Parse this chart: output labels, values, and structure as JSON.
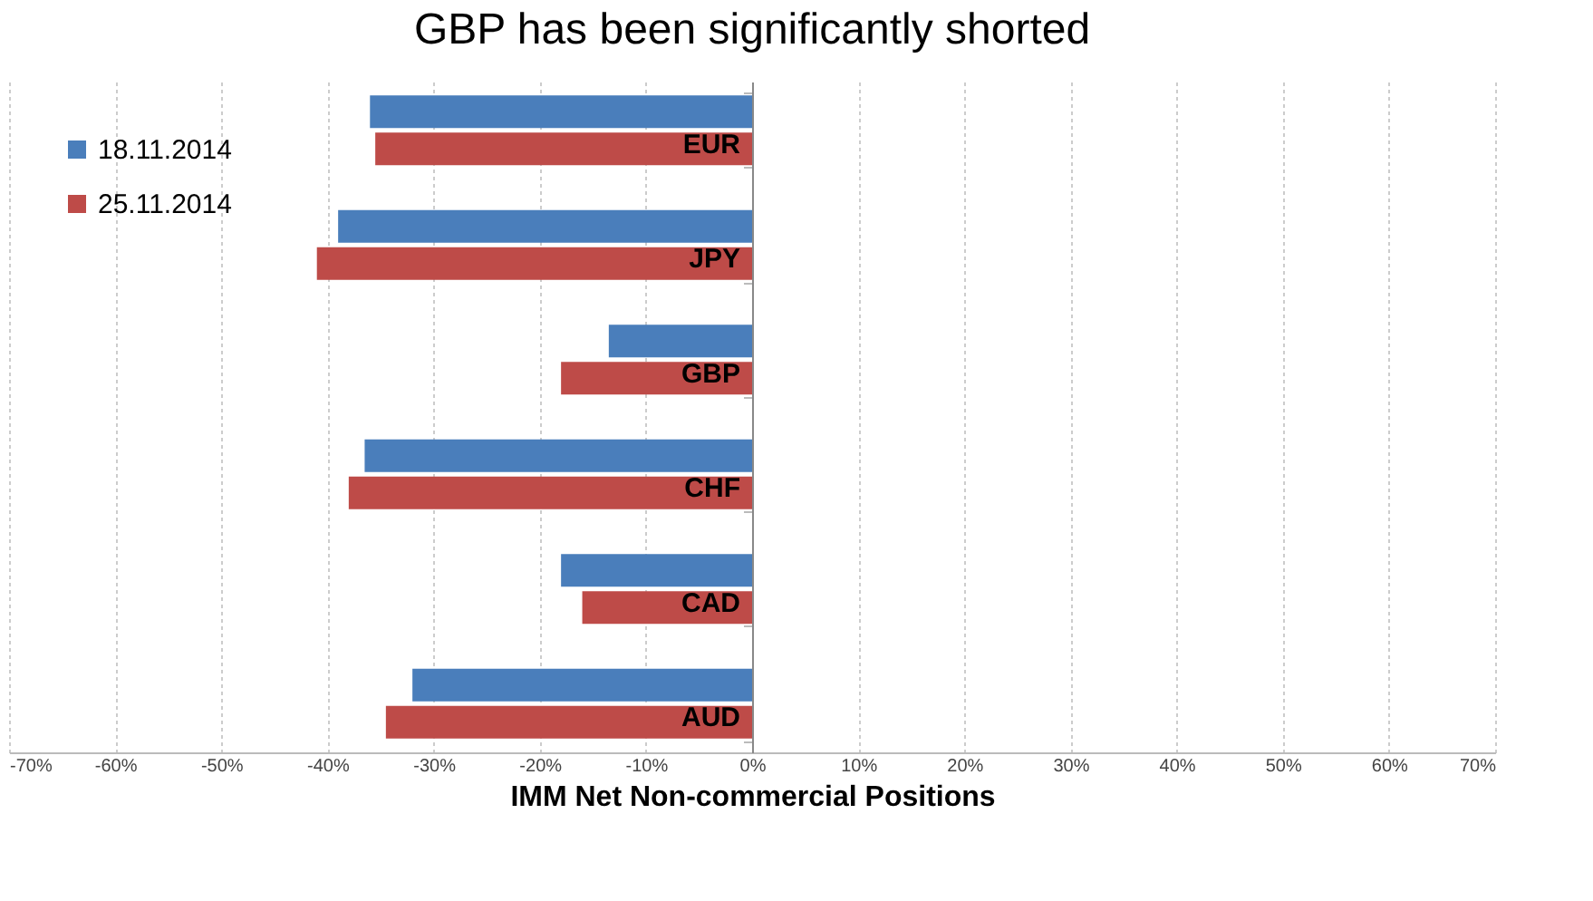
{
  "chart_data": {
    "type": "bar",
    "orientation": "horizontal",
    "title": "GBP has been significantly shorted",
    "xlabel": "IMM Net Non-commercial Positions",
    "categories": [
      "EUR",
      "JPY",
      "GBP",
      "CHF",
      "CAD",
      "AUD"
    ],
    "series": [
      {
        "name": "18.11.2014",
        "color": "#4a7ebb",
        "values": [
          -36,
          -39,
          -13.5,
          -36.5,
          -18,
          -32
        ]
      },
      {
        "name": "25.11.2014",
        "color": "#be4b48",
        "values": [
          -35.5,
          -41,
          -18,
          -38,
          -16,
          -34.5
        ]
      }
    ],
    "xlim": [
      -70,
      70
    ],
    "xticks": [
      {
        "value": -70,
        "label": "-70%"
      },
      {
        "value": -60,
        "label": "-60%"
      },
      {
        "value": -50,
        "label": "-50%"
      },
      {
        "value": -40,
        "label": "-40%"
      },
      {
        "value": -30,
        "label": "-30%"
      },
      {
        "value": -20,
        "label": "-20%"
      },
      {
        "value": -10,
        "label": "-10%"
      },
      {
        "value": 0,
        "label": "0%"
      },
      {
        "value": 10,
        "label": "10%"
      },
      {
        "value": 20,
        "label": "20%"
      },
      {
        "value": 30,
        "label": "30%"
      },
      {
        "value": 40,
        "label": "40%"
      },
      {
        "value": 50,
        "label": "50%"
      },
      {
        "value": 60,
        "label": "60%"
      },
      {
        "value": 70,
        "label": "70%"
      }
    ],
    "grid": "x",
    "legend": "top left"
  }
}
